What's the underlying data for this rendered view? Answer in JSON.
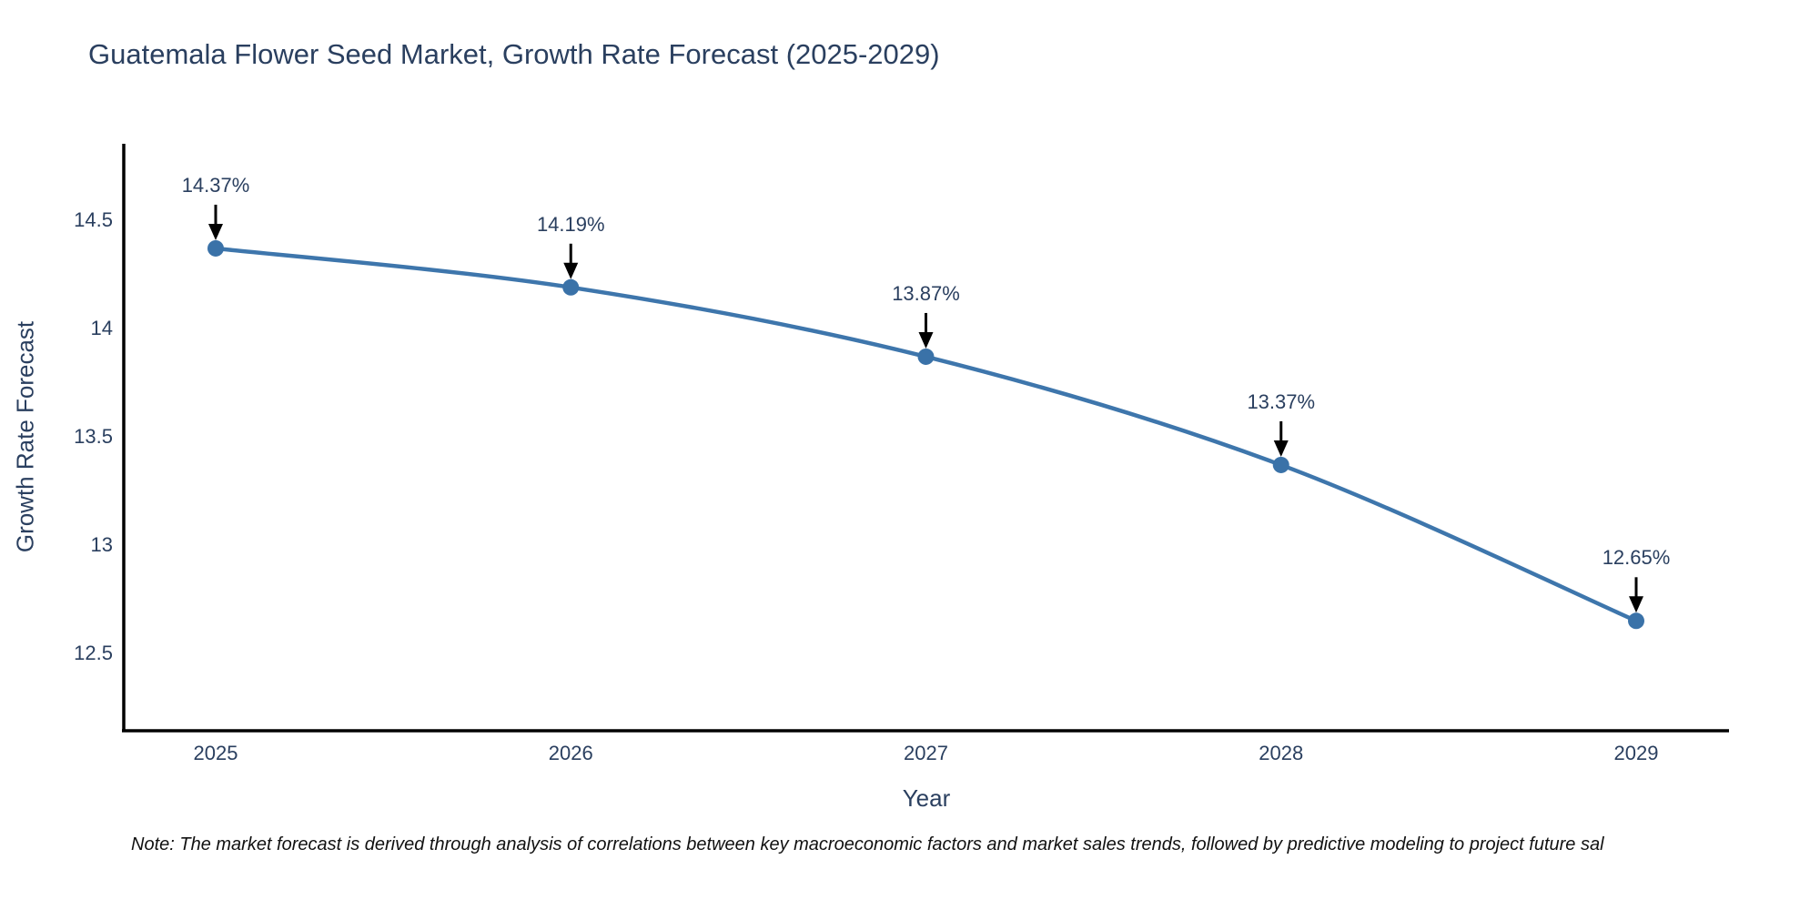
{
  "title": "Guatemala Flower Seed Market, Growth Rate Forecast (2025-2029)",
  "note": "Note: The market forecast is derived through analysis of correlations between key macroeconomic factors and market sales trends, followed by predictive modeling to project future sal",
  "chart_data": {
    "type": "line",
    "curve": "spline",
    "title": "Guatemala Flower Seed Market, Growth Rate Forecast (2025-2029)",
    "xlabel": "Year",
    "ylabel": "Growth Rate Forecast",
    "x": [
      2025,
      2026,
      2027,
      2028,
      2029
    ],
    "x_tick_labels": [
      "2025",
      "2026",
      "2027",
      "2028",
      "2029"
    ],
    "values": [
      14.37,
      14.19,
      13.87,
      13.37,
      12.65
    ],
    "point_labels": [
      "14.37%",
      "14.19%",
      "13.87%",
      "13.37%",
      "12.65%"
    ],
    "y_ticks": [
      14.5,
      14,
      13.5,
      13,
      12.5
    ],
    "y_tick_labels": [
      "14.5",
      "14",
      "13.5",
      "13",
      "12.5"
    ],
    "ylim": [
      12.14,
      14.84
    ],
    "grid": false,
    "legend": "none",
    "annotation_style": "black-down-arrow",
    "line_color": "#3E76AC",
    "marker_color": "#3A72A8",
    "arrow_color": "#000000",
    "axis_line_color": "#000000",
    "text_color": "#2a3f5f",
    "background_color": "#ffffff"
  }
}
